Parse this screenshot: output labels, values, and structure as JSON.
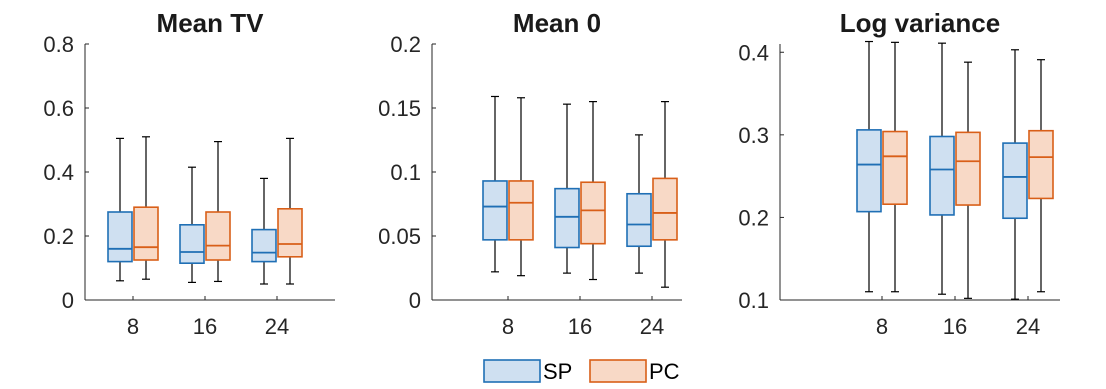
{
  "colors": {
    "sp_edge": "#1f6fb5",
    "sp_fill": "#cfe0f1",
    "pc_edge": "#d95f18",
    "pc_fill": "#f8d9c6",
    "axis": "#262626",
    "whisker": "#000000"
  },
  "legend": {
    "placement": "bottom-center",
    "items": [
      "SP",
      "PC"
    ]
  },
  "chart_data": [
    {
      "type": "box",
      "title": "Mean TV",
      "xlabel": "",
      "ylabel": "",
      "categories": [
        "8",
        "16",
        "24"
      ],
      "ylim": [
        0,
        0.8
      ],
      "yticks": [
        "0",
        "0.2",
        "0.4",
        "0.6",
        "0.8"
      ],
      "ytick_values": [
        0,
        0.2,
        0.4,
        0.6,
        0.8
      ],
      "grid": false,
      "series": [
        {
          "name": "SP",
          "boxes": [
            {
              "min": 0.06,
              "q1": 0.12,
              "median": 0.16,
              "q3": 0.275,
              "max": 0.505
            },
            {
              "min": 0.055,
              "q1": 0.115,
              "median": 0.15,
              "q3": 0.235,
              "max": 0.415
            },
            {
              "min": 0.05,
              "q1": 0.12,
              "median": 0.148,
              "q3": 0.22,
              "max": 0.38
            }
          ]
        },
        {
          "name": "PC",
          "boxes": [
            {
              "min": 0.065,
              "q1": 0.125,
              "median": 0.165,
              "q3": 0.29,
              "max": 0.51
            },
            {
              "min": 0.058,
              "q1": 0.125,
              "median": 0.17,
              "q3": 0.275,
              "max": 0.495
            },
            {
              "min": 0.05,
              "q1": 0.135,
              "median": 0.175,
              "q3": 0.285,
              "max": 0.505
            }
          ]
        }
      ]
    },
    {
      "type": "box",
      "title": "Mean 0",
      "xlabel": "",
      "ylabel": "",
      "categories": [
        "8",
        "16",
        "24"
      ],
      "ylim": [
        0,
        0.2
      ],
      "yticks": [
        "0",
        "0.05",
        "0.1",
        "0.15",
        "0.2"
      ],
      "ytick_values": [
        0,
        0.05,
        0.1,
        0.15,
        0.2
      ],
      "grid": false,
      "series": [
        {
          "name": "SP",
          "boxes": [
            {
              "min": 0.022,
              "q1": 0.047,
              "median": 0.073,
              "q3": 0.093,
              "max": 0.159
            },
            {
              "min": 0.021,
              "q1": 0.041,
              "median": 0.065,
              "q3": 0.087,
              "max": 0.153
            },
            {
              "min": 0.021,
              "q1": 0.042,
              "median": 0.059,
              "q3": 0.083,
              "max": 0.129
            }
          ]
        },
        {
          "name": "PC",
          "boxes": [
            {
              "min": 0.019,
              "q1": 0.047,
              "median": 0.076,
              "q3": 0.093,
              "max": 0.158
            },
            {
              "min": 0.016,
              "q1": 0.044,
              "median": 0.07,
              "q3": 0.092,
              "max": 0.155
            },
            {
              "min": 0.01,
              "q1": 0.047,
              "median": 0.068,
              "q3": 0.095,
              "max": 0.155
            }
          ]
        }
      ]
    },
    {
      "type": "box",
      "title": "Log variance",
      "xlabel": "",
      "ylabel": "",
      "categories": [
        "8",
        "16",
        "24"
      ],
      "ylim": [
        0.1,
        0.41
      ],
      "yticks": [
        "0.1",
        "0.2",
        "0.3",
        "0.4"
      ],
      "ytick_values": [
        0.1,
        0.2,
        0.3,
        0.4
      ],
      "grid": false,
      "series": [
        {
          "name": "SP",
          "boxes": [
            {
              "min": 0.11,
              "q1": 0.207,
              "median": 0.264,
              "q3": 0.306,
              "max": 0.413
            },
            {
              "min": 0.107,
              "q1": 0.203,
              "median": 0.258,
              "q3": 0.298,
              "max": 0.411
            },
            {
              "min": 0.101,
              "q1": 0.199,
              "median": 0.249,
              "q3": 0.29,
              "max": 0.403
            }
          ]
        },
        {
          "name": "PC",
          "boxes": [
            {
              "min": 0.11,
              "q1": 0.216,
              "median": 0.274,
              "q3": 0.304,
              "max": 0.412
            },
            {
              "min": 0.102,
              "q1": 0.215,
              "median": 0.268,
              "q3": 0.303,
              "max": 0.388
            },
            {
              "min": 0.11,
              "q1": 0.223,
              "median": 0.273,
              "q3": 0.305,
              "max": 0.391
            }
          ]
        }
      ]
    }
  ]
}
